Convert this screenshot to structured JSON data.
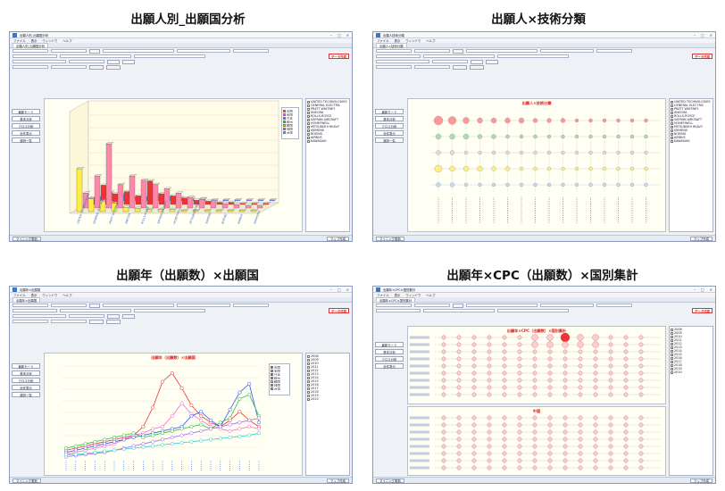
{
  "captions": {
    "top_left": "出願人別_出願国分析",
    "top_right": "出願人×技術分類",
    "bottom_left": "出願年（出願数）×出願国",
    "bottom_right": "出願年×CPC（出願数）×国別集計"
  },
  "windows": [
    {
      "title": "出願人別_出願国分析",
      "menu": [
        "ファイル",
        "表示",
        "ウィンドウ",
        "ヘルプ"
      ],
      "tab": "出願人別_出願国分析",
      "chart_title": "出願人別_出願国分析",
      "sidebar": [
        "最新モード",
        "基本分析",
        "クロス分析",
        "全件表示",
        "選択一覧"
      ],
      "status": "マイニング更新",
      "status_right": "マップ作成",
      "red_button": "データ作成"
    },
    {
      "title": "出願人技術分類",
      "menu": [
        "ファイル",
        "表示",
        "ウィンドウ",
        "ヘルプ"
      ],
      "tab": "出願人×技術分類",
      "chart_title": "出願人×技術分類",
      "sidebar": [
        "最新モード",
        "基本分析",
        "クロス分析",
        "全件表示",
        "選択一覧"
      ],
      "status": "マイニング更新",
      "status_right": "マップ作成",
      "red_button": "データ作成"
    },
    {
      "title": "出願年×出願国",
      "menu": [
        "ファイル",
        "表示",
        "ウィンドウ",
        "ヘルプ"
      ],
      "tab": "出願年×出願国",
      "chart_title": "出願年（出願数）×出願国",
      "sidebar": [
        "最新モード",
        "基本分析",
        "クロス分析",
        "全件表示",
        "選択一覧"
      ],
      "status": "マイニング更新",
      "status_right": "マップ作成",
      "red_button": "データ作成"
    },
    {
      "title": "出願年×CPC×国別集計",
      "menu": [
        "ファイル",
        "表示",
        "ウィンドウ",
        "ヘルプ"
      ],
      "tab": "出願年×CPC×国別集計",
      "chart_title": "出願年×CPC（出願数）×国別集計",
      "chart_subtitle": "中国",
      "sidebar": [
        "最新モード",
        "基本分析",
        "クロス分析",
        "全件表示"
      ],
      "status": "マイニング更新",
      "status_right": "マップ作成",
      "red_button": "データ作成"
    }
  ],
  "legend_country": [
    "中国",
    "米国",
    "日本",
    "欧州",
    "韓国",
    "独国",
    "台湾"
  ],
  "applicants": [
    "UNITED TECHNOLOGIES",
    "GENERAL ELECTRIC",
    "PRATT WHITNEY",
    "SNECMA",
    "ROLLS-ROYCE",
    "SAFRAN AIRCRAFT",
    "HONEYWELL",
    "MITSUBISHI HEAVY",
    "SIEMENS",
    "BOEING",
    "AIRBUS",
    "KAWASAKI"
  ],
  "years": [
    "2008",
    "2009",
    "2010",
    "2011",
    "2012",
    "2013",
    "2014",
    "2015",
    "2016",
    "2017",
    "2018",
    "2019",
    "2020"
  ],
  "colors": {
    "accent_red": "#e02020",
    "series": [
      "#ee3333",
      "#ff66cc",
      "#3355ee",
      "#33bb44",
      "#ffee44",
      "#aa66ee",
      "#33cccc"
    ]
  }
}
